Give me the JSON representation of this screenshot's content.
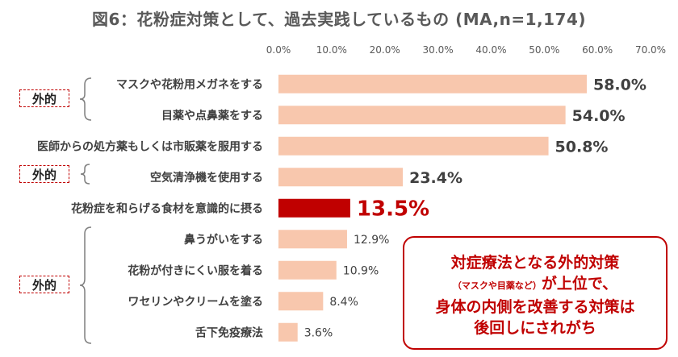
{
  "chart_data": {
    "type": "bar",
    "orientation": "horizontal",
    "title": "図6：花粉症対策として、過去実践しているもの (MA,n=1,174)",
    "categories": [
      "マスクや花粉用メガネをする",
      "目薬や点鼻薬をする",
      "医師からの処方薬もしくは市販薬を服用する",
      "空気清浄機を使用する",
      "花粉症を和らげる食材を意識的に摂る",
      "鼻うがいをする",
      "花粉が付きにくい服を着る",
      "ワセリンやクリームを塗る",
      "舌下免疫療法"
    ],
    "values": [
      58.0,
      54.0,
      50.8,
      23.4,
      13.5,
      12.9,
      10.9,
      8.4,
      3.6
    ],
    "value_labels": [
      "58.0%",
      "54.0%",
      "50.8%",
      "23.4%",
      "13.5%",
      "12.9%",
      "10.9%",
      "8.4%",
      "3.6%"
    ],
    "highlight_index": 4,
    "xlim": [
      0,
      70
    ],
    "tick_labels": [
      "0.0%",
      "10.0%",
      "20.0%",
      "30.0%",
      "40.0%",
      "50.0%",
      "60.0%",
      "70.0%"
    ],
    "grid": false,
    "colors": {
      "bar": "#f8c7ad",
      "highlight": "#c00000",
      "accent": "#c00000"
    }
  },
  "tags": {
    "top": "外的",
    "mid": "外的",
    "bottom": "外的"
  },
  "callout": {
    "line1": "対症療法となる外的対策",
    "line2_small": "（マスクや目薬など）",
    "line2_rest": "が上位で、",
    "line3": "身体の内側を改善する対策は",
    "line4": "後回しにされがち"
  }
}
